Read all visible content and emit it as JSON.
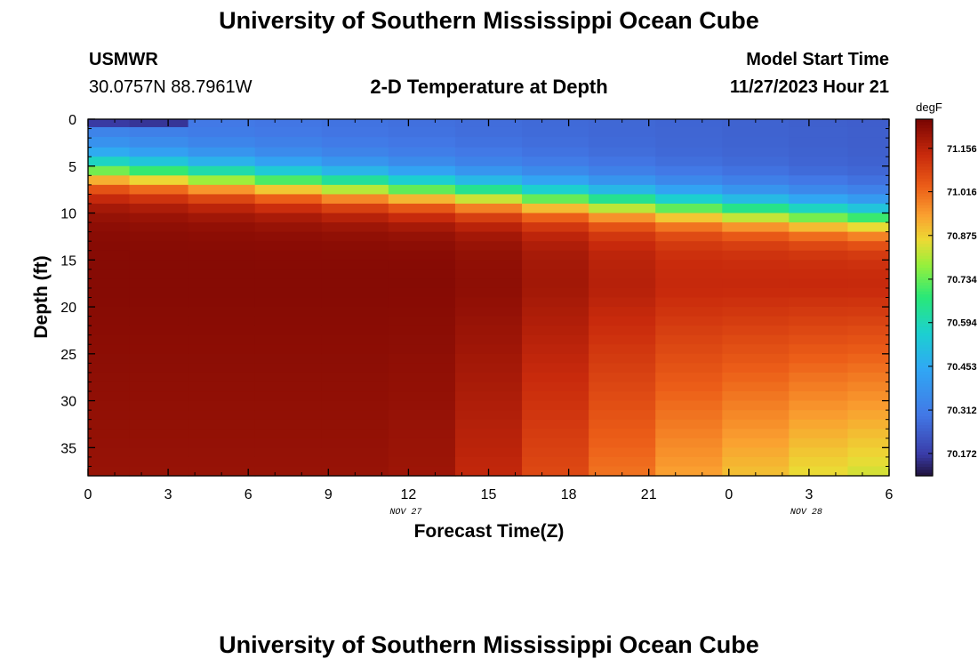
{
  "header": {
    "title": "University of Southern Mississippi Ocean Cube",
    "station": "USMWR",
    "coords": "30.0757N  88.7961W",
    "plot_title": "2-D Temperature at Depth",
    "model_label": "Model Start Time",
    "model_time": "11/27/2023 Hour 21"
  },
  "footer": {
    "title": "University of Southern Mississippi Ocean Cube"
  },
  "chart_data": {
    "type": "heatmap",
    "title": "2-D Temperature at Depth",
    "xlabel": "Forecast Time(Z)",
    "ylabel": "Depth (ft)",
    "colorbar_unit": "degF",
    "x_hours": [
      0,
      3,
      6,
      9,
      12,
      15,
      18,
      21,
      24,
      27,
      30
    ],
    "x_tick_labels": [
      "0",
      "3",
      "6",
      "9",
      "12",
      "15",
      "18",
      "21",
      "0",
      "3",
      "6"
    ],
    "x_range_hours": [
      0,
      30
    ],
    "date_labels": [
      {
        "hour": 11.9,
        "text": "NOV 27"
      },
      {
        "hour": 26.9,
        "text": "NOV 28"
      }
    ],
    "y_ticks": [
      0,
      5,
      10,
      15,
      20,
      25,
      30,
      35
    ],
    "y_range": [
      0,
      38
    ],
    "colorbar_ticks": [
      "71.156",
      "71.016",
      "70.875",
      "70.734",
      "70.594",
      "70.453",
      "70.312",
      "70.172"
    ],
    "color_range": [
      70.1,
      71.25
    ],
    "time_columns": [
      0.6,
      2.5,
      5.0,
      7.5,
      10.0,
      12.5,
      15.0,
      17.5,
      20.0,
      22.5,
      25.0,
      27.5,
      29.4
    ],
    "depth_rows": [
      0.4,
      1.3,
      2.5,
      3.5,
      4.5,
      5.5,
      6.5,
      7.5,
      8.5,
      9.5,
      10.5,
      11.5,
      12.5,
      13.5,
      14.5,
      15.5,
      16.5,
      17.5,
      18.5,
      19.5,
      20.5,
      21.5,
      22.5,
      23.5,
      24.5,
      25.5,
      26.5,
      27.5,
      28.5,
      29.5,
      30.5,
      31.5,
      32.5,
      33.5,
      34.5,
      35.5,
      36.5,
      37.5
    ]
  }
}
